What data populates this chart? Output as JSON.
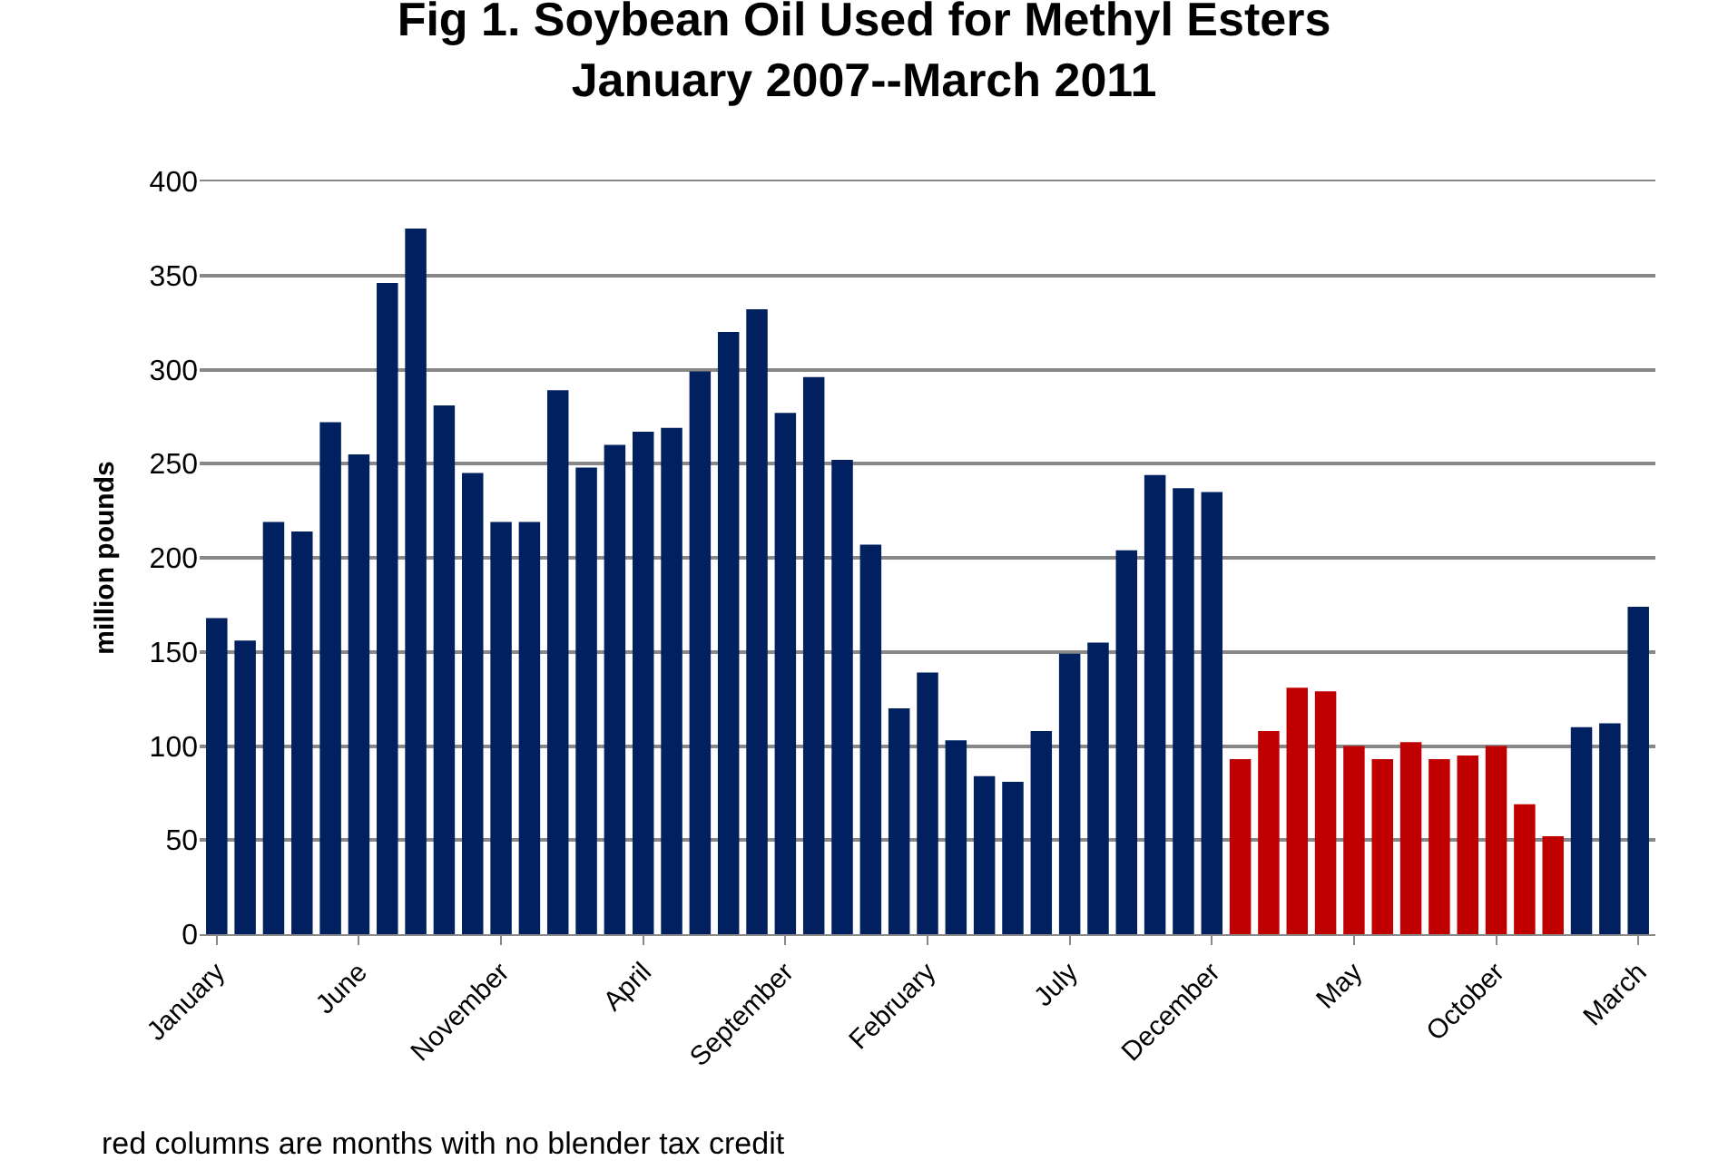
{
  "chart_data": {
    "type": "bar",
    "title": "Fig 1. Soybean Oil Used for Methyl Esters\nJanuary 2007--March 2011",
    "ylabel": "million pounds",
    "categories": [
      "January",
      null,
      null,
      null,
      null,
      "June",
      null,
      null,
      null,
      null,
      "November",
      null,
      null,
      null,
      null,
      "April",
      null,
      null,
      null,
      null,
      "September",
      null,
      null,
      null,
      null,
      "February",
      null,
      null,
      null,
      null,
      "July",
      null,
      null,
      null,
      null,
      "December",
      null,
      null,
      null,
      null,
      "May",
      null,
      null,
      null,
      null,
      "October",
      null,
      null,
      null,
      null,
      "March"
    ],
    "values": [
      168,
      156,
      219,
      214,
      272,
      255,
      346,
      375,
      281,
      245,
      219,
      219,
      289,
      248,
      260,
      267,
      269,
      299,
      320,
      332,
      277,
      296,
      252,
      207,
      120,
      139,
      103,
      84,
      81,
      108,
      149,
      155,
      204,
      244,
      237,
      235,
      93,
      108,
      131,
      129,
      100,
      93,
      102,
      93,
      95,
      100,
      69,
      52,
      110,
      112,
      174
    ],
    "colors": [
      "#002060",
      "#002060",
      "#002060",
      "#002060",
      "#002060",
      "#002060",
      "#002060",
      "#002060",
      "#002060",
      "#002060",
      "#002060",
      "#002060",
      "#002060",
      "#002060",
      "#002060",
      "#002060",
      "#002060",
      "#002060",
      "#002060",
      "#002060",
      "#002060",
      "#002060",
      "#002060",
      "#002060",
      "#002060",
      "#002060",
      "#002060",
      "#002060",
      "#002060",
      "#002060",
      "#002060",
      "#002060",
      "#002060",
      "#002060",
      "#002060",
      "#002060",
      "#c00000",
      "#c00000",
      "#c00000",
      "#c00000",
      "#c00000",
      "#c00000",
      "#c00000",
      "#c00000",
      "#c00000",
      "#c00000",
      "#c00000",
      "#c00000",
      "#002060",
      "#002060",
      "#002060"
    ],
    "ylim": [
      0,
      400
    ],
    "yticks": [
      0,
      50,
      100,
      150,
      200,
      250,
      300,
      350,
      400
    ],
    "grid": "y",
    "annotations": [
      "red columns are months with no blender tax credit"
    ]
  }
}
